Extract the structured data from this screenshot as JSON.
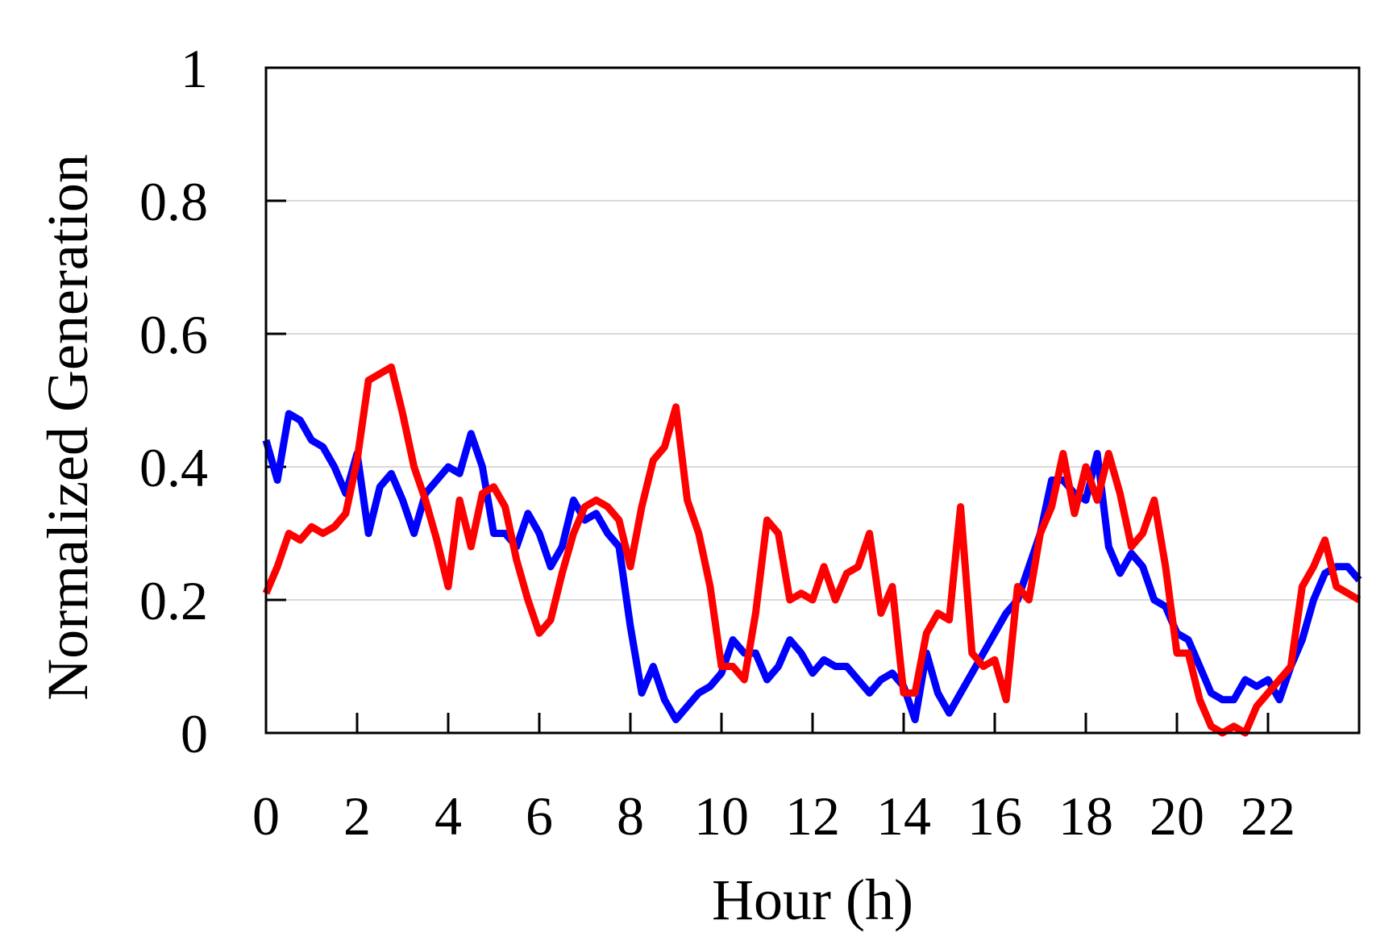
{
  "chart_data": {
    "type": "line",
    "xlabel": "Hour (h)",
    "ylabel": "Normalized Generation",
    "x": [
      0,
      0.25,
      0.5,
      0.75,
      1,
      1.25,
      1.5,
      1.75,
      2,
      2.25,
      2.5,
      2.75,
      3,
      3.25,
      3.5,
      3.75,
      4,
      4.25,
      4.5,
      4.75,
      5,
      5.25,
      5.5,
      5.75,
      6,
      6.25,
      6.5,
      6.75,
      7,
      7.25,
      7.5,
      7.75,
      8,
      8.25,
      8.5,
      8.75,
      9,
      9.25,
      9.5,
      9.75,
      10,
      10.25,
      10.5,
      10.75,
      11,
      11.25,
      11.5,
      11.75,
      12,
      12.25,
      12.5,
      12.75,
      13,
      13.25,
      13.5,
      13.75,
      14,
      14.25,
      14.5,
      14.75,
      15,
      15.25,
      15.5,
      15.75,
      16,
      16.25,
      16.5,
      16.75,
      17,
      17.25,
      17.5,
      17.75,
      18,
      18.25,
      18.5,
      18.75,
      19,
      19.25,
      19.5,
      19.75,
      20,
      20.25,
      20.5,
      20.75,
      21,
      21.25,
      21.5,
      21.75,
      22,
      22.25,
      22.5,
      22.75,
      23,
      23.25,
      23.5,
      23.75,
      24
    ],
    "series": [
      {
        "color": "#0000ff",
        "values": [
          0.44,
          0.38,
          0.48,
          0.47,
          0.44,
          0.43,
          0.4,
          0.36,
          0.42,
          0.3,
          0.37,
          0.39,
          0.35,
          0.3,
          0.36,
          0.38,
          0.4,
          0.39,
          0.45,
          0.4,
          0.3,
          0.3,
          0.28,
          0.33,
          0.3,
          0.25,
          0.28,
          0.35,
          0.32,
          0.33,
          0.3,
          0.28,
          0.16,
          0.06,
          0.1,
          0.05,
          0.02,
          0.04,
          0.06,
          0.07,
          0.09,
          0.14,
          0.12,
          0.12,
          0.08,
          0.1,
          0.14,
          0.12,
          0.09,
          0.11,
          0.1,
          0.1,
          0.08,
          0.06,
          0.08,
          0.09,
          0.07,
          0.02,
          0.12,
          0.06,
          0.03,
          0.06,
          0.09,
          0.12,
          0.15,
          0.18,
          0.2,
          0.25,
          0.3,
          0.38,
          0.38,
          0.36,
          0.35,
          0.42,
          0.28,
          0.24,
          0.27,
          0.25,
          0.2,
          0.19,
          0.15,
          0.14,
          0.1,
          0.06,
          0.05,
          0.05,
          0.08,
          0.07,
          0.08,
          0.05,
          0.1,
          0.14,
          0.2,
          0.24,
          0.25,
          0.25,
          0.23
        ]
      },
      {
        "color": "#ff0000",
        "values": [
          0.21,
          0.25,
          0.3,
          0.29,
          0.31,
          0.3,
          0.31,
          0.33,
          0.41,
          0.53,
          0.54,
          0.55,
          0.48,
          0.4,
          0.35,
          0.29,
          0.22,
          0.35,
          0.28,
          0.36,
          0.37,
          0.34,
          0.26,
          0.2,
          0.15,
          0.17,
          0.24,
          0.3,
          0.34,
          0.35,
          0.34,
          0.32,
          0.25,
          0.34,
          0.41,
          0.43,
          0.49,
          0.35,
          0.3,
          0.22,
          0.1,
          0.1,
          0.08,
          0.18,
          0.32,
          0.3,
          0.2,
          0.21,
          0.2,
          0.25,
          0.2,
          0.24,
          0.25,
          0.3,
          0.18,
          0.22,
          0.06,
          0.06,
          0.15,
          0.18,
          0.17,
          0.34,
          0.12,
          0.1,
          0.11,
          0.05,
          0.22,
          0.2,
          0.3,
          0.34,
          0.42,
          0.33,
          0.4,
          0.35,
          0.42,
          0.36,
          0.28,
          0.3,
          0.35,
          0.25,
          0.12,
          0.12,
          0.05,
          0.01,
          0.0,
          0.01,
          0.0,
          0.04,
          0.06,
          0.08,
          0.1,
          0.22,
          0.25,
          0.29,
          0.22,
          0.21,
          0.2
        ]
      }
    ],
    "xlim": [
      0,
      24
    ],
    "xticks": [
      0,
      2,
      4,
      6,
      8,
      10,
      12,
      14,
      16,
      18,
      20,
      22
    ],
    "ylim": [
      0,
      1
    ],
    "yticks": [
      0,
      0.2,
      0.4,
      0.6,
      0.8,
      1
    ],
    "grid": true
  }
}
